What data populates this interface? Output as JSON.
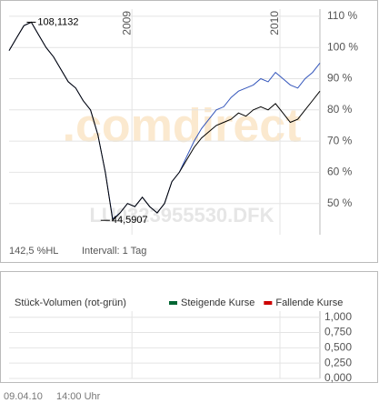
{
  "chart_data": [
    {
      "type": "line",
      "watermark": ".comdirect",
      "symbol": "LU0323955530.DFK",
      "x": [
        2008.17,
        2008.22,
        2008.27,
        2008.32,
        2008.37,
        2008.42,
        2008.47,
        2008.52,
        2008.57,
        2008.62,
        2008.67,
        2008.72,
        2008.77,
        2008.82,
        2008.87,
        2008.92,
        2008.97,
        2009.02,
        2009.07,
        2009.12,
        2009.17,
        2009.22,
        2009.27,
        2009.32,
        2009.37,
        2009.42,
        2009.47,
        2009.52,
        2009.57,
        2009.62,
        2009.67,
        2009.72,
        2009.77,
        2009.82,
        2009.87,
        2009.92,
        2009.97,
        2010.02,
        2010.07,
        2010.12,
        2010.17,
        2010.22,
        2010.27
      ],
      "series": [
        {
          "color": "#3355bb",
          "values": [
            99,
            103,
            107,
            108.1,
            104,
            100,
            97,
            93,
            89,
            87,
            83,
            80,
            72,
            60,
            45,
            47,
            50,
            49,
            52,
            49,
            47,
            50,
            57,
            60,
            65,
            70,
            74,
            77,
            80,
            81,
            84,
            86,
            87,
            88,
            90,
            89,
            92,
            90,
            88,
            87,
            90,
            92,
            95
          ]
        },
        {
          "color": "#000000",
          "values": [
            99,
            103,
            107,
            108.1,
            104,
            100,
            97,
            93,
            89,
            87,
            83,
            80,
            72,
            60,
            44.6,
            47,
            50,
            49,
            52,
            49,
            47,
            50,
            57,
            60,
            64,
            68,
            71,
            73,
            75,
            76,
            77,
            79,
            78,
            80,
            81,
            80,
            82,
            79,
            76,
            77,
            80,
            83,
            86
          ]
        }
      ],
      "annotations": [
        {
          "text": "108,1132",
          "x": 2008.32,
          "y": 108.1
        },
        {
          "text": "44,5907",
          "x": 2008.82,
          "y": 44.6
        }
      ],
      "xlim": [
        2008.17,
        2010.27
      ],
      "xticks": [
        {
          "value": 2009,
          "label": "2009"
        },
        {
          "value": 2010,
          "label": "2010"
        }
      ],
      "ylim": [
        40,
        112.3
      ],
      "yticks": [
        {
          "value": 110,
          "label": "110 %"
        },
        {
          "value": 100,
          "label": "100 %"
        },
        {
          "value": 90,
          "label": "90 %"
        },
        {
          "value": 80,
          "label": "80 %"
        },
        {
          "value": 70,
          "label": "70 %"
        },
        {
          "value": 60,
          "label": "60 %"
        },
        {
          "value": 50,
          "label": "50 %"
        }
      ],
      "grid": true,
      "footer_left": "142,5 %HL",
      "footer_right": "Intervall: 1 Tag"
    },
    {
      "type": "bar",
      "title": "Stück-Volumen (rot-grün)",
      "series": [
        {
          "name": "Steigende Kurse",
          "color": "#006633",
          "values": []
        },
        {
          "name": "Fallende Kurse",
          "color": "#cc0000",
          "values": []
        }
      ],
      "ylim": [
        0,
        1.1
      ],
      "yticks": [
        {
          "value": 1,
          "label": "1,000"
        },
        {
          "value": 0.75,
          "label": "0,750"
        },
        {
          "value": 0.5,
          "label": "0,500"
        },
        {
          "value": 0.25,
          "label": "0,250"
        },
        {
          "value": 0,
          "label": "0,000"
        }
      ],
      "grid": true
    }
  ],
  "footer": {
    "date": "09.04.10",
    "time": "14:00 Uhr"
  }
}
